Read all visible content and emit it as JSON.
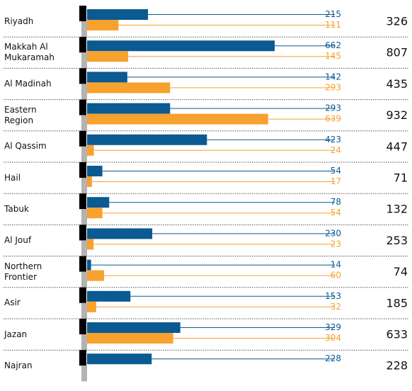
{
  "chart_data": {
    "type": "bar",
    "categories": [
      "Riyadh",
      "Makkah Al Mukaramah",
      "Al Madinah",
      "Eastern Region",
      "Al Qassim",
      "Hail",
      "Tabuk",
      "Al Jouf",
      "Northern Frontier",
      "Asir",
      "Jazan",
      "Najran"
    ],
    "series": [
      {
        "color": "#0b5a91",
        "values": [
          215,
          662,
          142,
          293,
          423,
          54,
          78,
          230,
          14,
          153,
          329,
          228
        ]
      },
      {
        "color": "#f7a12f",
        "values": [
          111,
          145,
          293,
          639,
          24,
          17,
          54,
          23,
          60,
          32,
          304,
          null
        ]
      }
    ],
    "totals": [
      326,
      807,
      435,
      932,
      447,
      71,
      132,
      253,
      74,
      185,
      633,
      228
    ]
  }
}
